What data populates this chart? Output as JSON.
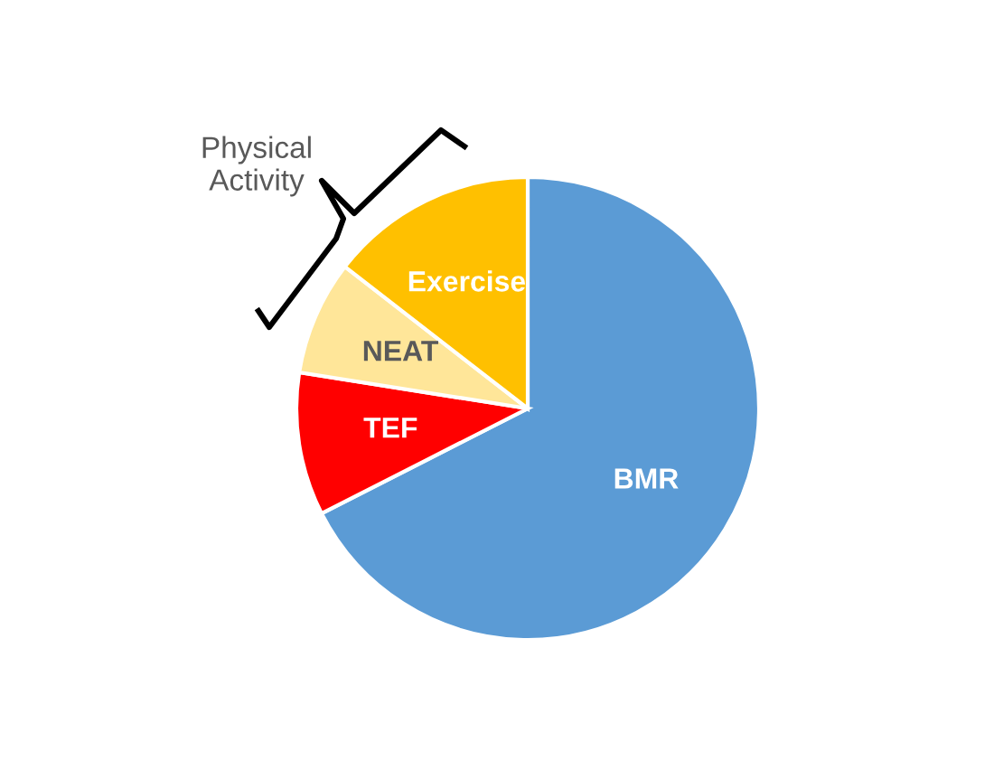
{
  "chart_data": {
    "type": "pie",
    "categories": [
      "BMR",
      "TEF",
      "NEAT",
      "Exercise"
    ],
    "values": [
      67.5,
      10,
      8,
      14.5
    ],
    "colors": [
      "#5b9bd5",
      "#ff0000",
      "#ffe699",
      "#ffc000"
    ],
    "annotations": [
      "Physical\nActivity"
    ],
    "legend": false
  }
}
